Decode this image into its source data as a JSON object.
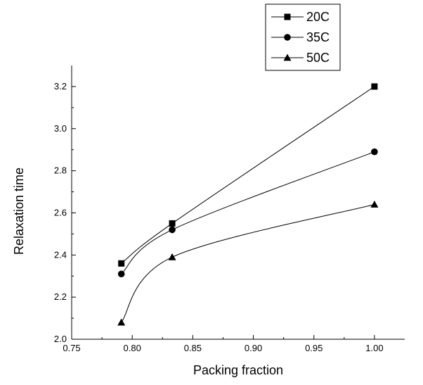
{
  "chart_data": {
    "type": "line",
    "title": "",
    "xlabel": "Packing fraction",
    "ylabel": "Relaxation time",
    "xlim": [
      0.75,
      1.025
    ],
    "ylim": [
      2.0,
      3.3
    ],
    "xticks": [
      0.75,
      0.8,
      0.85,
      0.9,
      0.95,
      1.0
    ],
    "xtick_labels": [
      "0.75",
      "0.80",
      "0.85",
      "0.90",
      "0.95",
      "1.00"
    ],
    "yticks": [
      2.0,
      2.2,
      2.4,
      2.6,
      2.8,
      3.0,
      3.2
    ],
    "ytick_labels": [
      "2.0",
      "2.2",
      "2.4",
      "2.6",
      "2.8",
      "3.0",
      "3.2"
    ],
    "grid": false,
    "legend_position": "top-right",
    "x": [
      0.791,
      0.833,
      1.0
    ],
    "series": [
      {
        "name": "20C",
        "marker": "square",
        "values": [
          2.36,
          2.55,
          3.2
        ]
      },
      {
        "name": "35C",
        "marker": "circle",
        "values": [
          2.31,
          2.52,
          2.89
        ]
      },
      {
        "name": "50C",
        "marker": "triangle",
        "values": [
          2.08,
          2.39,
          2.64
        ]
      }
    ],
    "colors": {
      "line": "#000000",
      "marker": "#000000",
      "axis": "#000000"
    }
  }
}
